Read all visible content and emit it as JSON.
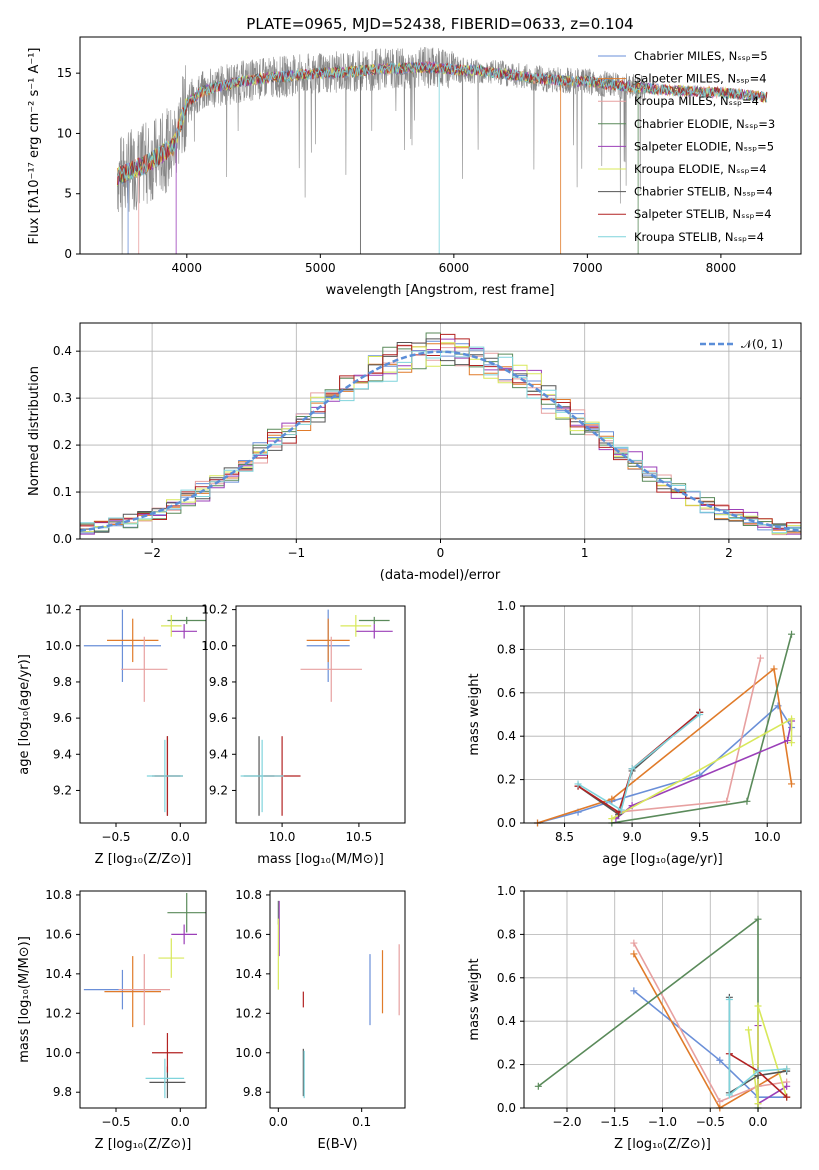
{
  "colors": [
    "#6a8fd8",
    "#e07b2a",
    "#e7a0a0",
    "#5a8a5a",
    "#9b3fb8",
    "#d8e85a",
    "#555555",
    "#b22222",
    "#7fd4dc"
  ],
  "chart_data": [
    {
      "id": "spectrum",
      "type": "line",
      "title": "PLATE=0965, MJD=52438, FIBERID=0633, z=0.104",
      "xlabel": "wavelength [Angstrom, rest frame]",
      "ylabel": "Flux [fλ10⁻¹⁷ erg cm⁻² s⁻¹ A⁻¹]",
      "xlim": [
        3200,
        8600
      ],
      "ylim": [
        0,
        18
      ],
      "xticks": [
        4000,
        5000,
        6000,
        7000,
        8000
      ],
      "yticks": [
        0,
        5,
        10,
        15
      ],
      "grid": false,
      "legend": "right",
      "series": [
        {
          "name": "Chabrier MILES, Nₛₛₚ=5"
        },
        {
          "name": "Salpeter MILES, Nₛₛₚ=4"
        },
        {
          "name": "Kroupa MILES, Nₛₛₚ=4"
        },
        {
          "name": "Chabrier ELODIE, Nₛₛₚ=3"
        },
        {
          "name": "Salpeter ELODIE, Nₛₛₚ=5"
        },
        {
          "name": "Kroupa ELODIE, Nₛₛₚ=4"
        },
        {
          "name": "Chabrier STELIB, Nₛₛₚ=4"
        },
        {
          "name": "Salpeter STELIB, Nₛₛₚ=4"
        },
        {
          "name": "Kroupa STELIB, Nₛₛₚ=4"
        }
      ],
      "model_continuum": {
        "x": [
          3500,
          3600,
          3700,
          3800,
          3900,
          4000,
          4100,
          4200,
          4400,
          4600,
          4800,
          5000,
          5200,
          5400,
          5600,
          5800,
          6000,
          6200,
          6400,
          6600,
          6800,
          7000,
          7200,
          7400,
          7600,
          7800,
          8000,
          8200,
          8350
        ],
        "y": [
          6.5,
          7.0,
          7.5,
          8.2,
          9.0,
          12.5,
          13.4,
          13.8,
          14.3,
          14.6,
          14.8,
          15.0,
          15.1,
          15.3,
          15.4,
          15.5,
          15.3,
          15.2,
          14.9,
          14.6,
          14.4,
          14.3,
          14.0,
          13.8,
          13.6,
          13.5,
          13.4,
          13.2,
          13.0
        ]
      }
    },
    {
      "id": "residuals",
      "type": "line",
      "xlabel": "(data-model)/error",
      "ylabel": "Normed distribution",
      "xlim": [
        -2.5,
        2.5
      ],
      "ylim": [
        0,
        0.46
      ],
      "xticks": [
        -2,
        -1,
        0,
        1,
        2
      ],
      "yticks": [
        0.0,
        0.1,
        0.2,
        0.3,
        0.4
      ],
      "grid": true,
      "legend": "top-right",
      "gaussian_label": "𝒩(0, 1)",
      "bin_width": 0.1
    },
    {
      "id": "age_vs_Z",
      "type": "scatter",
      "xlabel": "Z [log₁₀(Z/Z⊙)]",
      "ylabel": "age  [log₁₀(age/yr)]",
      "xlim": [
        -0.78,
        0.2
      ],
      "ylim": [
        9.02,
        10.22
      ],
      "xticks": [
        -0.5,
        0.0
      ],
      "yticks": [
        9.2,
        9.4,
        9.6,
        9.8,
        10.0,
        10.2
      ],
      "x": [
        -0.45,
        -0.37,
        -0.28,
        0.05,
        0.03,
        -0.07,
        -0.1,
        -0.1,
        -0.12
      ],
      "xerr": [
        0.3,
        0.2,
        0.18,
        0.15,
        0.1,
        0.08,
        0.12,
        0.1,
        0.14
      ],
      "y": [
        10.0,
        10.03,
        9.87,
        10.14,
        10.08,
        10.11,
        9.28,
        9.28,
        9.28
      ],
      "yerr": [
        0.2,
        0.12,
        0.18,
        0.02,
        0.04,
        0.06,
        0.22,
        0.22,
        0.2
      ]
    },
    {
      "id": "age_vs_mass",
      "type": "scatter",
      "xlabel": "mass [log₁₀(M/M⊙)]",
      "ylabel": "",
      "xlim": [
        9.7,
        10.8
      ],
      "ylim": [
        9.02,
        10.22
      ],
      "xticks": [
        10.0,
        10.5
      ],
      "yticks": [
        9.2,
        9.4,
        9.6,
        9.8,
        10.0,
        10.2
      ],
      "x": [
        10.3,
        10.3,
        10.32,
        10.6,
        10.6,
        10.48,
        9.85,
        10.0,
        9.87
      ],
      "xerr": [
        0.14,
        0.14,
        0.2,
        0.1,
        0.12,
        0.1,
        0.1,
        0.12,
        0.14
      ],
      "y": [
        10.0,
        10.03,
        9.87,
        10.14,
        10.08,
        10.11,
        9.28,
        9.28,
        9.28
      ],
      "yerr": [
        0.2,
        0.12,
        0.18,
        0.02,
        0.04,
        0.06,
        0.22,
        0.22,
        0.2
      ]
    },
    {
      "id": "weight_vs_age",
      "type": "line",
      "xlabel": "age  [log₁₀(age/yr)]",
      "ylabel": "mass weight",
      "xlim": [
        8.2,
        10.25
      ],
      "ylim": [
        0,
        1
      ],
      "xticks": [
        8.5,
        9.0,
        9.5,
        10.0
      ],
      "yticks": [
        0.0,
        0.2,
        0.4,
        0.6,
        0.8,
        1.0
      ],
      "grid": true,
      "series": [
        {
          "x": [
            8.3,
            8.6,
            8.85,
            9.5,
            10.08,
            10.18
          ],
          "y": [
            0.0,
            0.05,
            0.1,
            0.22,
            0.54,
            0.44
          ]
        },
        {
          "x": [
            8.3,
            8.85,
            10.05,
            10.18
          ],
          "y": [
            0.0,
            0.11,
            0.71,
            0.18
          ]
        },
        {
          "x": [
            8.9,
            9.7,
            9.95
          ],
          "y": [
            0.05,
            0.1,
            0.76
          ]
        },
        {
          "x": [
            8.85,
            9.85,
            10.18
          ],
          "y": [
            0.0,
            0.1,
            0.87
          ]
        },
        {
          "x": [
            8.88,
            9.0,
            10.15,
            10.18
          ],
          "y": [
            0.02,
            0.08,
            0.38,
            0.47
          ]
        },
        {
          "x": [
            8.85,
            10.18,
            10.18
          ],
          "y": [
            0.02,
            0.48,
            0.37
          ]
        },
        {
          "x": [
            8.6,
            8.9,
            9.0,
            9.5,
            9.5
          ],
          "y": [
            0.17,
            0.04,
            0.24,
            0.51,
            0.51
          ]
        },
        {
          "x": [
            8.6,
            8.9,
            9.0,
            9.5
          ],
          "y": [
            0.17,
            0.05,
            0.25,
            0.51
          ]
        },
        {
          "x": [
            8.6,
            8.92,
            9.0,
            9.5
          ],
          "y": [
            0.18,
            0.06,
            0.25,
            0.5
          ]
        }
      ]
    },
    {
      "id": "mass_vs_Z",
      "type": "scatter",
      "xlabel": "Z [log₁₀(Z/Z⊙)]",
      "ylabel": "mass [log₁₀(M/M⊙)]",
      "xlim": [
        -0.78,
        0.2
      ],
      "ylim": [
        9.72,
        10.82
      ],
      "xticks": [
        -0.5,
        0.0
      ],
      "yticks": [
        9.8,
        10.0,
        10.2,
        10.4,
        10.6,
        10.8
      ],
      "x": [
        -0.45,
        -0.37,
        -0.28,
        0.05,
        0.03,
        -0.07,
        -0.1,
        -0.1,
        -0.12
      ],
      "xerr": [
        0.3,
        0.22,
        0.2,
        0.15,
        0.1,
        0.1,
        0.14,
        0.12,
        0.15
      ],
      "y": [
        10.32,
        10.31,
        10.32,
        10.71,
        10.6,
        10.48,
        9.85,
        10.0,
        9.87
      ],
      "yerr": [
        0.1,
        0.18,
        0.18,
        0.1,
        0.05,
        0.1,
        0.08,
        0.1,
        0.1
      ]
    },
    {
      "id": "mass_vs_ebv",
      "type": "scatter",
      "xlabel": "E(B-V)",
      "ylabel": "",
      "xlim": [
        -0.01,
        0.152
      ],
      "ylim": [
        9.72,
        10.82
      ],
      "xticks": [
        0.0,
        0.1
      ],
      "yticks": [
        9.8,
        10.0,
        10.2,
        10.4,
        10.6,
        10.8
      ],
      "x": [
        0.11,
        0.125,
        0.145,
        0.0,
        0.001,
        0.0,
        0.03,
        0.03,
        0.031
      ],
      "y": [
        10.32,
        10.36,
        10.37,
        10.71,
        10.63,
        10.5,
        9.9,
        10.27,
        9.89
      ],
      "yerr": [
        0.18,
        0.16,
        0.18,
        0.06,
        0.14,
        0.18,
        0.12,
        0.04,
        0.12
      ]
    },
    {
      "id": "weight_vs_Z",
      "type": "line",
      "xlabel": "Z [log₁₀(Z/Z⊙)]",
      "ylabel": "mass weight",
      "xlim": [
        -2.45,
        0.45
      ],
      "ylim": [
        0,
        1
      ],
      "xticks": [
        -2.0,
        -1.5,
        -1.0,
        -0.5,
        0.0
      ],
      "yticks": [
        0.0,
        0.2,
        0.4,
        0.6,
        0.8,
        1.0
      ],
      "grid": true,
      "series": [
        {
          "x": [
            -1.3,
            -0.4,
            0.0,
            0.3
          ],
          "y": [
            0.54,
            0.22,
            0.05,
            0.05
          ]
        },
        {
          "x": [
            -1.3,
            -0.4,
            0.3
          ],
          "y": [
            0.71,
            0.0,
            0.18
          ]
        },
        {
          "x": [
            -1.3,
            -0.4,
            0.0,
            0.3
          ],
          "y": [
            0.76,
            0.03,
            0.1,
            0.12
          ]
        },
        {
          "x": [
            -2.3,
            0.0,
            0.0
          ],
          "y": [
            0.1,
            0.87,
            0.0
          ]
        },
        {
          "x": [
            0.0,
            0.0,
            0.3
          ],
          "y": [
            0.38,
            0.02,
            0.1
          ]
        },
        {
          "x": [
            -0.1,
            0.0,
            0.0,
            0.3
          ],
          "y": [
            0.36,
            0.02,
            0.47,
            0.05
          ]
        },
        {
          "x": [
            -0.3,
            -0.3,
            0.0,
            0.3
          ],
          "y": [
            0.51,
            0.07,
            0.15,
            0.17
          ]
        },
        {
          "x": [
            -0.3,
            0.0,
            0.3
          ],
          "y": [
            0.25,
            0.17,
            0.05
          ]
        },
        {
          "x": [
            -0.3,
            -0.3,
            0.0,
            0.3
          ],
          "y": [
            0.5,
            0.06,
            0.17,
            0.18
          ]
        }
      ]
    }
  ]
}
